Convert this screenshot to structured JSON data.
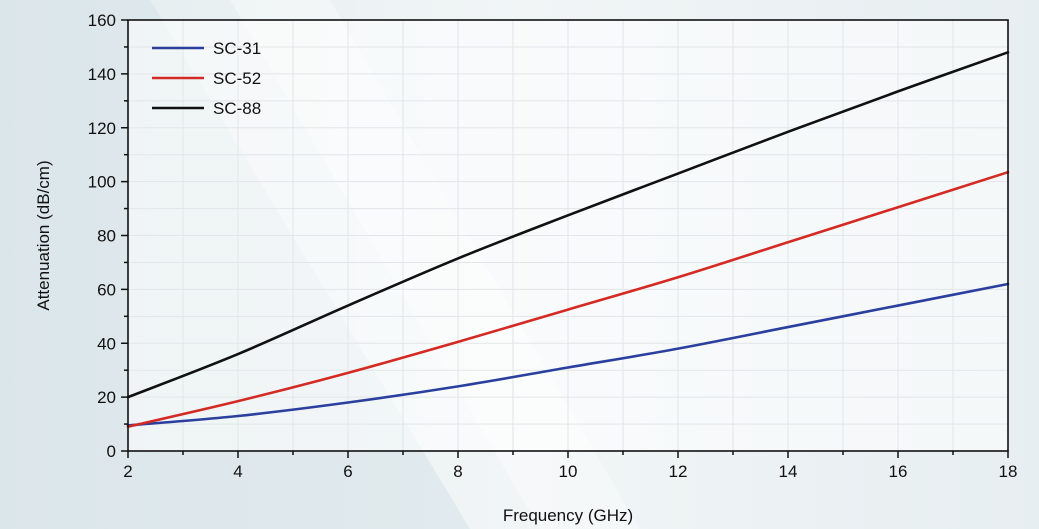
{
  "chart_data": {
    "type": "line",
    "xlabel": "Frequency (GHz)",
    "ylabel": "Attenuation (dB/cm)",
    "xlim": [
      2,
      18
    ],
    "ylim": [
      0,
      160
    ],
    "x_ticks": [
      2,
      4,
      6,
      8,
      10,
      12,
      14,
      16,
      18
    ],
    "y_ticks": [
      0,
      20,
      40,
      60,
      80,
      100,
      120,
      140,
      160
    ],
    "grid": true,
    "legend_position": "top-left",
    "x": [
      2,
      4,
      6,
      8,
      10,
      12,
      14,
      16,
      18
    ],
    "series": [
      {
        "name": "SC-31",
        "color": "#2b3f9e",
        "values": [
          9.5,
          13,
          18,
          24,
          31,
          38,
          46,
          54,
          62
        ]
      },
      {
        "name": "SC-52",
        "color": "#d42a24",
        "values": [
          9,
          18.5,
          29,
          40.5,
          52.5,
          64.5,
          77.5,
          90.5,
          103.5
        ]
      },
      {
        "name": "SC-88",
        "color": "#111111",
        "values": [
          20,
          36,
          54,
          71.5,
          87.5,
          103,
          118.5,
          133.5,
          148
        ]
      }
    ]
  }
}
